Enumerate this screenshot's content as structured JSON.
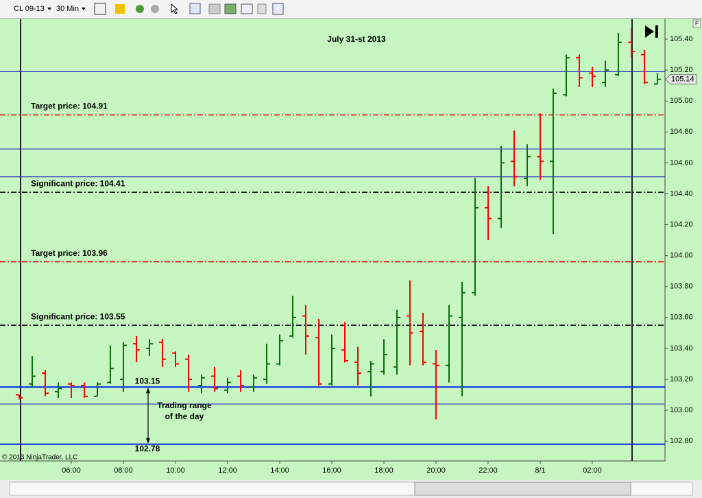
{
  "toolbar": {
    "instrument": "CL 09-13",
    "interval": "30 Min",
    "axis_button": "F"
  },
  "copyright": "© 2013 NinjaTrader, LLC",
  "chart_data": {
    "type": "ohlc",
    "title": "July 31-st 2013",
    "categories": [
      null,
      null,
      null,
      null,
      "06:00",
      null,
      null,
      null,
      "08:00",
      null,
      null,
      null,
      "10:00",
      null,
      null,
      null,
      "12:00",
      null,
      null,
      null,
      "14:00",
      null,
      null,
      null,
      "16:00",
      null,
      null,
      null,
      "18:00",
      null,
      null,
      null,
      "20:00",
      null,
      null,
      null,
      "22:00",
      null,
      null,
      null,
      "8/1",
      null,
      null,
      null,
      "02:00",
      null,
      null,
      null,
      null,
      null
    ],
    "open": [
      103.1,
      103.17,
      103.24,
      103.12,
      103.17,
      103.16,
      103.09,
      103.18,
      103.2,
      103.43,
      103.4,
      103.44,
      103.37,
      103.33,
      103.16,
      103.22,
      103.13,
      103.22,
      103.15,
      103.2,
      103.3,
      103.48,
      103.61,
      103.47,
      103.17,
      103.39,
      103.31,
      103.25,
      103.25,
      103.28,
      103.61,
      103.51,
      103.3,
      103.29,
      103.6,
      103.76,
      104.31,
      104.24,
      104.61,
      104.5,
      104.64,
      104.61,
      105.04,
      105.28,
      105.18,
      105.12,
      105.17,
      105.38,
      105.3,
      105.11
    ],
    "high": [
      103.1,
      103.35,
      103.26,
      103.18,
      103.18,
      103.18,
      103.18,
      103.42,
      103.44,
      103.48,
      103.46,
      103.46,
      103.38,
      103.36,
      103.23,
      103.28,
      103.21,
      103.26,
      103.23,
      103.43,
      103.49,
      103.74,
      103.68,
      103.59,
      103.49,
      103.57,
      103.41,
      103.32,
      103.46,
      103.65,
      103.84,
      103.63,
      103.39,
      103.68,
      103.83,
      104.5,
      104.45,
      104.71,
      104.81,
      104.72,
      104.92,
      105.08,
      105.3,
      105.3,
      105.22,
      105.26,
      105.44,
      105.47,
      105.33,
      105.18
    ],
    "low": [
      103.07,
      103.15,
      103.09,
      103.08,
      103.08,
      103.08,
      103.09,
      103.17,
      103.12,
      103.31,
      103.35,
      103.28,
      103.28,
      103.12,
      103.11,
      103.12,
      103.11,
      103.12,
      103.12,
      103.17,
      103.29,
      103.47,
      103.36,
      103.16,
      103.16,
      103.31,
      103.16,
      103.09,
      103.23,
      103.23,
      103.29,
      103.29,
      102.94,
      103.18,
      103.09,
      103.74,
      104.1,
      104.18,
      104.45,
      104.45,
      104.49,
      104.14,
      105.03,
      105.09,
      105.09,
      105.09,
      105.16,
      105.28,
      105.11,
      105.11
    ],
    "close": [
      103.08,
      103.22,
      103.11,
      103.14,
      103.16,
      103.09,
      103.17,
      103.27,
      103.42,
      103.39,
      103.43,
      103.33,
      103.3,
      103.2,
      103.21,
      103.14,
      103.18,
      103.16,
      103.21,
      103.3,
      103.45,
      103.6,
      103.48,
      103.17,
      103.4,
      103.32,
      103.24,
      103.3,
      103.36,
      103.6,
      103.5,
      103.31,
      103.29,
      103.61,
      103.76,
      104.31,
      104.24,
      104.6,
      104.51,
      104.64,
      104.61,
      105.05,
      105.28,
      105.15,
      105.16,
      105.2,
      105.38,
      105.32,
      105.12,
      105.14
    ],
    "up_color": "#0a6e0a",
    "down_color": "#ff0000",
    "ylim": [
      102.672,
      105.529
    ],
    "yticks": [
      {
        "value": 102.8,
        "label": "102.80"
      },
      {
        "value": 103.0,
        "label": "103.00"
      },
      {
        "value": 103.2,
        "label": "103.20"
      },
      {
        "value": 103.4,
        "label": "103.40"
      },
      {
        "value": 103.6,
        "label": "103.60"
      },
      {
        "value": 103.8,
        "label": "103.80"
      },
      {
        "value": 104.0,
        "label": "104.00"
      },
      {
        "value": 104.2,
        "label": "104.20"
      },
      {
        "value": 104.4,
        "label": "104.40"
      },
      {
        "value": 104.6,
        "label": "104.60"
      },
      {
        "value": 104.8,
        "label": "104.80"
      },
      {
        "value": 105.0,
        "label": "105.00"
      },
      {
        "value": 105.2,
        "label": "105.20"
      },
      {
        "value": 105.4,
        "label": "105.40"
      }
    ],
    "lines": [
      {
        "value": 105.19,
        "color": "#1a1acc",
        "style": "solid",
        "width": 1
      },
      {
        "value": 104.91,
        "color": "#e00000",
        "style": "dashdot",
        "width": 1.5,
        "label": "Target price: 104.91"
      },
      {
        "value": 104.69,
        "color": "#1a1acc",
        "style": "solid",
        "width": 1
      },
      {
        "value": 104.51,
        "color": "#1a1acc",
        "style": "solid",
        "width": 1
      },
      {
        "value": 104.41,
        "color": "#000000",
        "style": "dashdot",
        "width": 1.5,
        "label": "Significant price: 104.41"
      },
      {
        "value": 103.96,
        "color": "#e00000",
        "style": "dashdot",
        "width": 1.5,
        "label": "Target price: 103.96"
      },
      {
        "value": 103.55,
        "color": "#000000",
        "style": "dashdot",
        "width": 1.5,
        "label": "Significant price: 103.55"
      },
      {
        "value": 103.04,
        "color": "#1a1acc",
        "style": "solid",
        "width": 1
      }
    ],
    "range": {
      "high": 103.15,
      "low": 102.78,
      "color": "#0022ee",
      "label": [
        "Trading range",
        "of the day"
      ]
    }
  }
}
